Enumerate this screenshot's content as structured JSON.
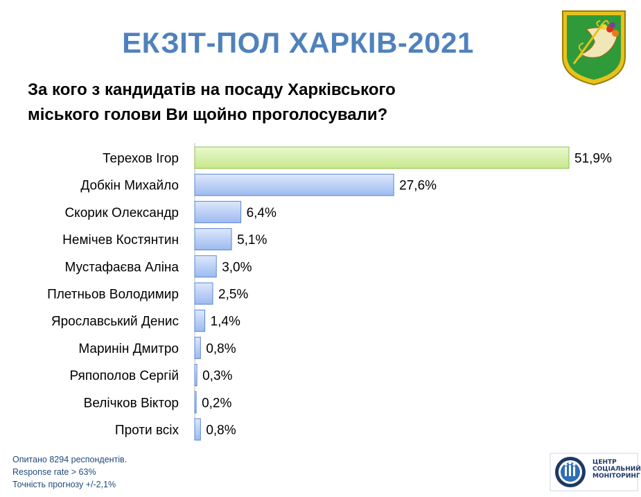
{
  "header": {
    "title": "ЕКЗІТ-ПОЛ ХАРКІВ-2021",
    "question_line1": "За кого з кандидатів на посаду Харківського",
    "question_line2": "міського голови Ви щойно проголосували?"
  },
  "footnote": {
    "line1": "Опитано 8294 респондентів.",
    "line2": "Response rate > 63%",
    "line3": "Точність прогнозу  +/-2,1%"
  },
  "logo": {
    "line1": "ЦЕНТР",
    "line2": "СОЦІАЛЬНИЙ",
    "line3": "МОНІТОРИНГ"
  },
  "colors": {
    "title": "#4f81bd",
    "leader_bar": "#d6f0a8",
    "other_bar": "#b7cdf3",
    "footnote": "#1f497d"
  },
  "chart_data": {
    "type": "bar",
    "orientation": "horizontal",
    "categories": [
      "Терехов Ігор",
      "Добкін Михайло",
      "Скорик Олександр",
      "Немічев Костянтин",
      "Мустафаєва Аліна",
      "Плетньов Володимир",
      "Ярославський Денис",
      "Маринін Дмитро",
      "Ряпополов Сергій",
      "Велічков Віктор",
      "Проти всіх"
    ],
    "values": [
      51.9,
      27.6,
      6.4,
      5.1,
      3.0,
      2.5,
      1.4,
      0.8,
      0.3,
      0.2,
      0.8
    ],
    "value_labels": [
      "51,9%",
      "27,6%",
      "6,4%",
      "5,1%",
      "3,0%",
      "2,5%",
      "1,4%",
      "0,8%",
      "0,3%",
      "0,2%",
      "0,8%"
    ],
    "highlight_index": 0,
    "xlim": [
      0,
      55
    ],
    "grid": false,
    "legend": "none"
  }
}
